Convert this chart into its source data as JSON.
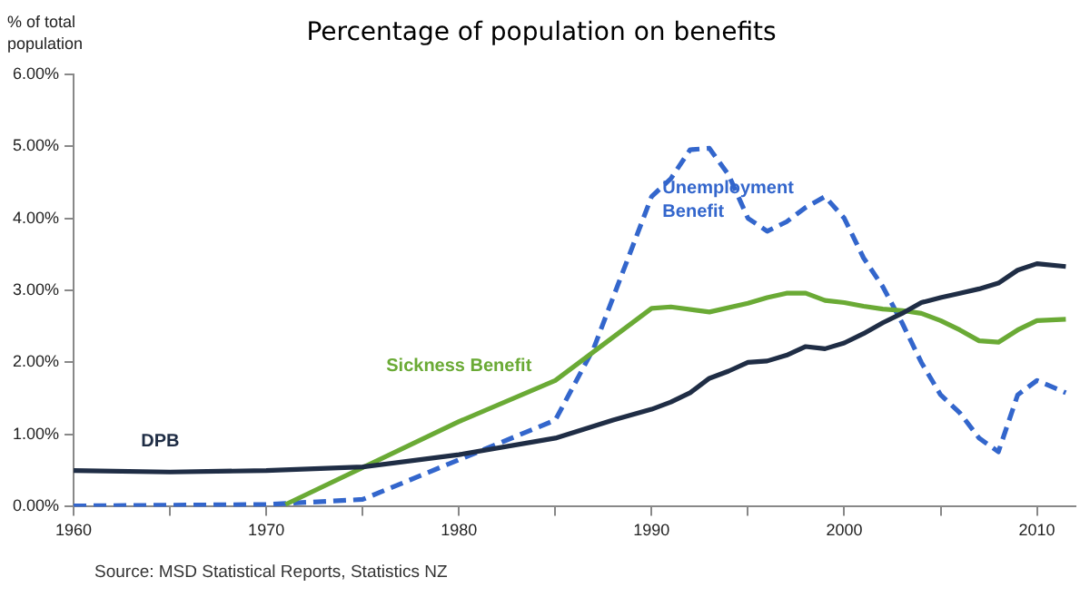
{
  "chart_data": {
    "type": "line",
    "title": "Percentage of population on benefits",
    "ylabel": "% of total population",
    "xlim": [
      1960,
      2012
    ],
    "ylim": [
      0,
      6
    ],
    "xticks": [
      1960,
      {
        "value": 1965,
        "label": null
      },
      1970,
      {
        "value": 1975,
        "label": null
      },
      1980,
      {
        "value": 1985,
        "label": null
      },
      1990,
      {
        "value": 1995,
        "label": null
      },
      2000,
      {
        "value": 2005,
        "label": null
      },
      2010
    ],
    "yticks": [
      {
        "value": 0,
        "label": "0.00%"
      },
      {
        "value": 1,
        "label": "1.00%"
      },
      {
        "value": 2,
        "label": "2.00%"
      },
      {
        "value": 3,
        "label": "3.00%"
      },
      {
        "value": 4,
        "label": "4.00%"
      },
      {
        "value": 5,
        "label": "5.00%"
      },
      {
        "value": 6,
        "label": "6.00%"
      }
    ],
    "grid": false,
    "legend": false,
    "marker": "none",
    "series": [
      {
        "name": "DPB",
        "color": "#1f2d45",
        "line_style": "solid",
        "x": [
          1960,
          1965,
          1970,
          1975,
          1980,
          1985,
          1988,
          1990,
          1991,
          1992,
          1993,
          1994,
          1995,
          1996,
          1997,
          1998,
          1999,
          2000,
          2001,
          2002,
          2003,
          2004,
          2005,
          2006,
          2007,
          2008,
          2009,
          2010,
          2011.5
        ],
        "values": [
          0.5,
          0.48,
          0.5,
          0.55,
          0.72,
          0.95,
          1.2,
          1.35,
          1.45,
          1.58,
          1.78,
          1.88,
          2.0,
          2.02,
          2.1,
          2.22,
          2.19,
          2.27,
          2.4,
          2.55,
          2.68,
          2.83,
          2.9,
          2.96,
          3.02,
          3.1,
          3.28,
          3.37,
          3.33
        ]
      },
      {
        "name": "Sickness Benefit",
        "color": "#6aaa35",
        "line_style": "solid",
        "x": [
          1971,
          1980,
          1985,
          1990,
          1991,
          1993,
          1995,
          1996,
          1997,
          1998,
          1999,
          2000,
          2001,
          2002,
          2003,
          2004,
          2005,
          2006,
          2007,
          2008,
          2009,
          2010,
          2011.5
        ],
        "values": [
          0.03,
          1.18,
          1.75,
          2.75,
          2.77,
          2.7,
          2.82,
          2.9,
          2.96,
          2.96,
          2.86,
          2.83,
          2.78,
          2.74,
          2.72,
          2.68,
          2.58,
          2.45,
          2.3,
          2.28,
          2.45,
          2.58,
          2.6
        ]
      },
      {
        "name": "Unemployment Benefit",
        "color": "#3366cc",
        "line_style": "dashed",
        "x": [
          1960,
          1970,
          1975,
          1980,
          1985,
          1987,
          1990,
          1991,
          1992,
          1993,
          1994,
          1995,
          1996,
          1997,
          1998,
          1999,
          2000,
          2001,
          2002,
          2003,
          2004,
          2005,
          2006,
          2007,
          2008,
          2009,
          2010,
          2011.5
        ],
        "values": [
          0.01,
          0.03,
          0.1,
          0.65,
          1.2,
          2.2,
          4.3,
          4.55,
          4.95,
          4.97,
          4.6,
          4.0,
          3.82,
          3.95,
          4.15,
          4.3,
          4.0,
          3.45,
          3.05,
          2.55,
          2.0,
          1.55,
          1.3,
          0.95,
          0.76,
          1.55,
          1.75,
          1.58
        ]
      }
    ],
    "annotations": [
      "Source:  MSD Statistical Reports, Statistics NZ"
    ]
  }
}
